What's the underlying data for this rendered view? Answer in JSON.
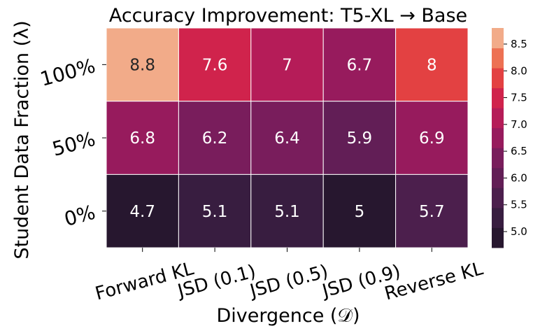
{
  "chart_data": {
    "type": "heatmap",
    "title": "Accuracy Improvement: T5-XL → Base",
    "xlabel": "Divergence (𝒟)",
    "ylabel": "Student Data Fraction (λ)",
    "x_categories": [
      "Forward KL",
      "JSD (0.1)",
      "JSD (0.5)",
      "JSD (0.9)",
      "Reverse KL"
    ],
    "y_categories": [
      "100%",
      "50%",
      "0%"
    ],
    "values": [
      [
        8.8,
        7.6,
        7,
        6.7,
        8
      ],
      [
        6.8,
        6.2,
        6.4,
        5.9,
        6.9
      ],
      [
        4.7,
        5.1,
        5.1,
        5,
        5.7
      ]
    ],
    "value_labels": [
      [
        "8.8",
        "7.6",
        "7",
        "6.7",
        "8"
      ],
      [
        "6.8",
        "6.2",
        "6.4",
        "5.9",
        "6.9"
      ],
      [
        "4.7",
        "5.1",
        "5.1",
        "5",
        "5.7"
      ]
    ],
    "colorbar": {
      "min": 4.7,
      "max": 8.8,
      "ticks": [
        5.0,
        5.5,
        6.0,
        6.5,
        7.0,
        7.5,
        8.0,
        8.5
      ],
      "tick_labels": [
        "5.0",
        "5.5",
        "6.0",
        "6.5",
        "7.0",
        "7.5",
        "8.0",
        "8.5"
      ],
      "colormap": "rocket",
      "discrete_bins": 11
    },
    "gridlines": "white cell borders"
  }
}
